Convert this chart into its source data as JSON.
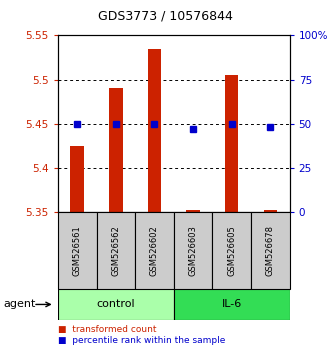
{
  "title": "GDS3773 / 10576844",
  "samples": [
    "GSM526561",
    "GSM526562",
    "GSM526602",
    "GSM526603",
    "GSM526605",
    "GSM526678"
  ],
  "red_values": [
    5.425,
    5.49,
    5.535,
    5.353,
    5.505,
    5.353
  ],
  "blue_values_pct": [
    50,
    50,
    50,
    47,
    50,
    48
  ],
  "y_min": 5.35,
  "y_max": 5.55,
  "y_ticks_red": [
    5.35,
    5.4,
    5.45,
    5.5,
    5.55
  ],
  "y_ticks_blue": [
    0,
    25,
    50,
    75,
    100
  ],
  "bar_color": "#cc2200",
  "dot_color": "#0000cc",
  "control_color": "#aaffaa",
  "il6_color": "#33dd55",
  "control_label": "control",
  "il6_label": "IL-6",
  "agent_label": "agent",
  "legend_red_label": "transformed count",
  "legend_blue_label": "percentile rank within the sample",
  "sample_box_color": "#cccccc",
  "n_control": 3,
  "n_il6": 3
}
